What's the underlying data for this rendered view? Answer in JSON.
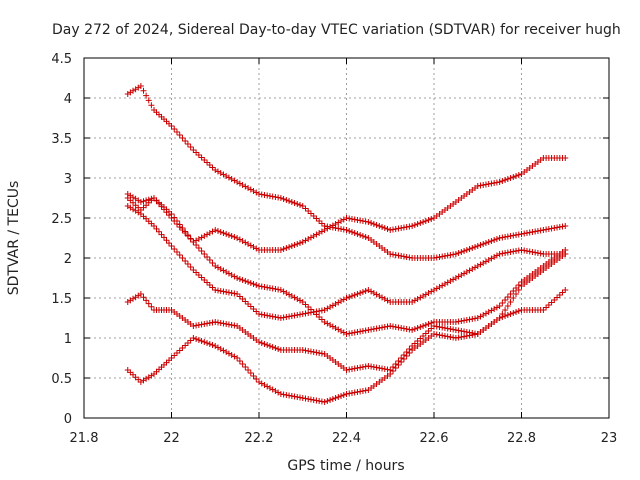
{
  "chart_data": {
    "type": "scatter",
    "title": "Day 272 of 2024, Sidereal Day-to-day VTEC variation (SDTVAR) for receiver hugh",
    "xlabel": "GPS time / hours",
    "ylabel": "SDTVAR / TECUs",
    "xlim": [
      21.8,
      23
    ],
    "ylim": [
      0,
      4.5
    ],
    "xticks": [
      "21.8",
      "22",
      "22.2",
      "22.4",
      "22.6",
      "22.8",
      "23"
    ],
    "yticks": [
      "0",
      "0.5",
      "1",
      "1.5",
      "2",
      "2.5",
      "3",
      "3.5",
      "4",
      "4.5"
    ],
    "grid": true,
    "marker": "+",
    "color": "#cc0000",
    "series": [
      {
        "name": "s1",
        "x": [
          21.9,
          21.93,
          21.96,
          22.0,
          22.05,
          22.1,
          22.15,
          22.2,
          22.25,
          22.3,
          22.35,
          22.4,
          22.45,
          22.5,
          22.55,
          22.6,
          22.65,
          22.7,
          22.75,
          22.8,
          22.85,
          22.9
        ],
        "y": [
          4.05,
          4.15,
          3.85,
          3.65,
          3.35,
          3.1,
          2.95,
          2.8,
          2.75,
          2.65,
          2.4,
          2.35,
          2.25,
          2.05,
          2.0,
          2.0,
          2.05,
          2.15,
          2.25,
          2.3,
          2.35,
          2.4
        ]
      },
      {
        "name": "s2",
        "x": [
          21.9,
          21.93,
          21.96,
          22.0,
          22.05,
          22.1,
          22.15,
          22.2,
          22.25,
          22.3,
          22.35,
          22.4,
          22.45,
          22.5,
          22.55,
          22.6,
          22.65,
          22.7,
          22.75,
          22.8,
          22.85,
          22.9
        ],
        "y": [
          2.8,
          2.7,
          2.75,
          2.5,
          2.2,
          2.35,
          2.25,
          2.1,
          2.1,
          2.2,
          2.35,
          2.5,
          2.45,
          2.35,
          2.4,
          2.5,
          2.7,
          2.9,
          2.95,
          3.05,
          3.25,
          3.25
        ]
      },
      {
        "name": "s3",
        "x": [
          21.9,
          21.93,
          21.96,
          22.0,
          22.05,
          22.1,
          22.15,
          22.2,
          22.25,
          22.3,
          22.35,
          22.4,
          22.45,
          22.5,
          22.55,
          22.6,
          22.65,
          22.7,
          22.75,
          22.8,
          22.85,
          22.9
        ],
        "y": [
          2.65,
          2.55,
          2.4,
          2.15,
          1.85,
          1.6,
          1.55,
          1.3,
          1.25,
          1.3,
          1.35,
          1.5,
          1.6,
          1.45,
          1.45,
          1.6,
          1.75,
          1.9,
          2.05,
          2.1,
          2.05,
          2.05
        ]
      },
      {
        "name": "s4",
        "x": [
          21.9,
          21.93,
          21.96,
          22.0,
          22.05,
          22.1,
          22.15,
          22.2,
          22.25,
          22.3,
          22.35,
          22.4,
          22.45,
          22.5,
          22.55,
          22.6,
          22.65,
          22.7,
          22.75,
          22.8,
          22.85,
          22.9
        ],
        "y": [
          2.75,
          2.6,
          2.75,
          2.55,
          2.2,
          1.9,
          1.75,
          1.65,
          1.6,
          1.45,
          1.2,
          1.05,
          1.1,
          1.15,
          1.1,
          1.2,
          1.2,
          1.25,
          1.4,
          1.7,
          1.9,
          2.1
        ]
      },
      {
        "name": "s5",
        "x": [
          21.9,
          21.93,
          21.96,
          22.0,
          22.05,
          22.1,
          22.15,
          22.2,
          22.25,
          22.3,
          22.35,
          22.4,
          22.45,
          22.5,
          22.55,
          22.6,
          22.65,
          22.7,
          22.75,
          22.8,
          22.85,
          22.9
        ],
        "y": [
          1.45,
          1.55,
          1.35,
          1.35,
          1.15,
          1.2,
          1.15,
          0.95,
          0.85,
          0.85,
          0.8,
          0.6,
          0.65,
          0.6,
          0.9,
          1.15,
          1.1,
          1.05,
          1.25,
          1.65,
          1.85,
          2.05
        ]
      },
      {
        "name": "s6",
        "x": [
          21.9,
          21.93,
          21.96,
          22.0,
          22.05,
          22.1,
          22.15,
          22.2,
          22.25,
          22.3,
          22.35,
          22.4,
          22.45,
          22.5,
          22.55,
          22.6,
          22.65,
          22.7,
          22.75,
          22.8,
          22.85,
          22.9
        ],
        "y": [
          0.6,
          0.45,
          0.55,
          0.75,
          1.0,
          0.9,
          0.75,
          0.45,
          0.3,
          0.25,
          0.2,
          0.3,
          0.35,
          0.55,
          0.85,
          1.05,
          1.0,
          1.05,
          1.25,
          1.35,
          1.35,
          1.6
        ]
      }
    ]
  }
}
